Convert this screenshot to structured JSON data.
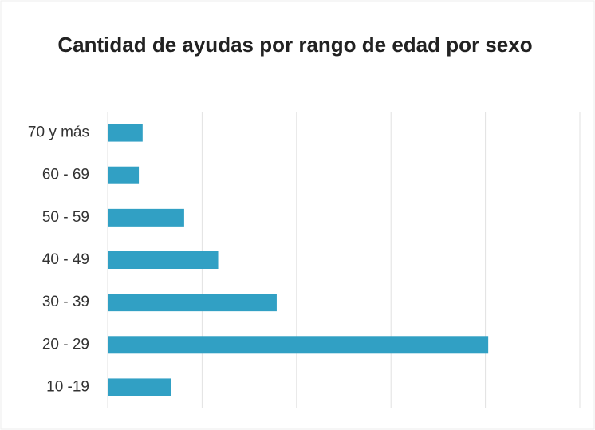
{
  "chart_data": {
    "type": "barh",
    "title": "Cantidad de ayudas por rango de edad por sexo",
    "categories": [
      "70 y más",
      "60 - 69",
      "50 - 59",
      "40 - 49",
      "30 - 39",
      "20 - 29",
      "10 -19"
    ],
    "values": [
      0.37,
      0.33,
      0.81,
      1.17,
      1.79,
      4.03,
      0.67
    ],
    "color": "#31a0c4",
    "xlim": [
      0,
      5
    ],
    "xticks": [
      0,
      1,
      2,
      3,
      4,
      5
    ],
    "grid": true
  }
}
